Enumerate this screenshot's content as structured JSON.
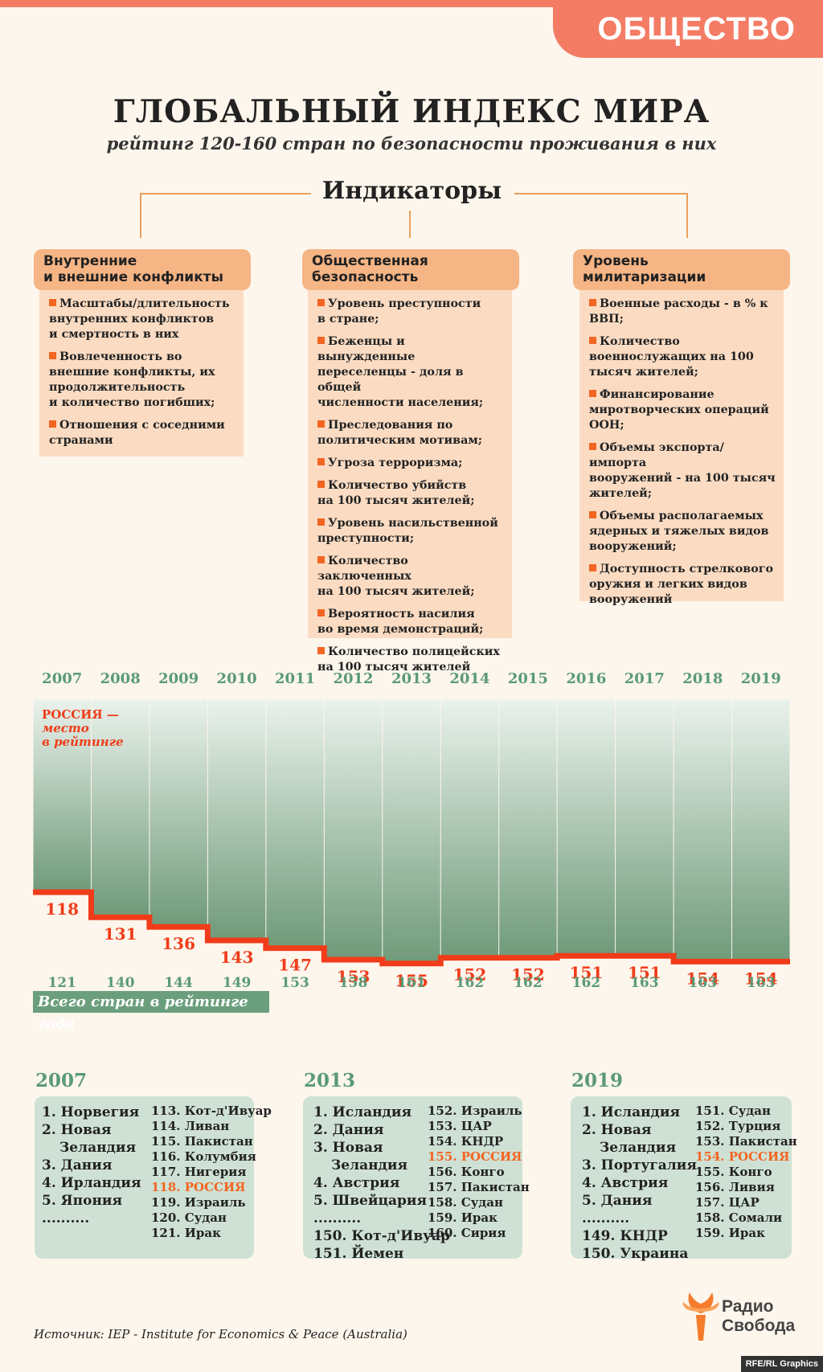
{
  "section": "ОБЩЕСТВО",
  "title": "ГЛОБАЛЬНЫЙ ИНДЕКС МИРА",
  "subtitle": "рейтинг 120-160 стран по безопасности проживания в них",
  "indicators_title": "Индикаторы",
  "categories": [
    {
      "title_lines": [
        "Внутренние",
        "и внешние конфликты"
      ],
      "items": [
        [
          "Масштабы/длительность",
          "внутренних конфликтов",
          "и смертность в них"
        ],
        [
          "Вовлеченность во",
          "внешние конфликты, их",
          "продолжительность",
          "и количество погибших;"
        ],
        [
          "Отношения с соседними",
          "странами"
        ]
      ]
    },
    {
      "title_lines": [
        "Общественная",
        "безопасность"
      ],
      "items": [
        [
          "Уровень преступности",
          "в стране;"
        ],
        [
          "Беженцы и вынужденные",
          "переселенцы - доля в общей",
          "численности населения;"
        ],
        [
          "Преследования по",
          "политическим мотивам;"
        ],
        [
          "Угроза терроризма;"
        ],
        [
          "Количество убийств",
          "на 100 тысяч жителей;"
        ],
        [
          "Уровень насильственной",
          "преступности;"
        ],
        [
          "Количество заключенных",
          "на 100 тысяч жителей;"
        ],
        [
          "Вероятность насилия",
          "во время демонстраций;"
        ],
        [
          "Количество полицейских",
          "на 100 тысяч жителей"
        ]
      ]
    },
    {
      "title_lines": [
        "Уровень",
        "милитаризации"
      ],
      "items": [
        [
          "Военные расходы - в % к",
          "ВВП;"
        ],
        [
          "Количество",
          "военнослужащих на 100",
          "тысяч жителей;"
        ],
        [
          "Финансирование",
          "миротворческих операций",
          "ООН;"
        ],
        [
          "Объемы экспорта/импорта",
          "вооружений - на 100 тысяч",
          "жителей;"
        ],
        [
          "Объемы располагаемых",
          "ядерных и тяжелых видов",
          "вооружений;"
        ],
        [
          "Доступность стрелкового",
          "оружия и легких видов",
          "вооружений"
        ]
      ]
    }
  ],
  "chart_data": {
    "type": "line",
    "x": [
      "2007",
      "2008",
      "2009",
      "2010",
      "2011",
      "2012",
      "2013",
      "2014",
      "2015",
      "2016",
      "2017",
      "2018",
      "2019"
    ],
    "series": [
      {
        "name": "РОССИЯ",
        "values": [
          118,
          131,
          136,
          143,
          147,
          153,
          155,
          152,
          152,
          151,
          151,
          154,
          154
        ]
      }
    ],
    "totals": [
      121,
      140,
      144,
      149,
      153,
      158,
      161,
      162,
      162,
      162,
      163,
      163,
      163
    ],
    "series_label_lines": [
      "РОССИЯ —",
      "место",
      "в рейтинге"
    ],
    "totals_label": "Всего стран в рейтинге года",
    "y_inverted": true,
    "colors": {
      "line": "#f03c1a",
      "fill_top": "#eaf2ec",
      "fill_bottom": "#6f9a79",
      "years": "#5a9a77",
      "totals": "#5a9a77"
    }
  },
  "rankings": [
    {
      "year": "2007",
      "top": [
        "1. Норвегия",
        "2. Новая",
        "Зеландия",
        "3. Дания",
        "4. Ирландия",
        "5. Япония",
        ".........."
      ],
      "bottom": [
        "113. Кот-д'Ивуар",
        "114. Ливан",
        "115. Пакистан",
        "116. Колумбия",
        "117. Нигерия",
        "118. РОССИЯ",
        "119. Израиль",
        "120. Судан",
        "121. Ирак"
      ],
      "highlight": "118. РОССИЯ"
    },
    {
      "year": "2013",
      "top": [
        "1. Исландия",
        "2. Дания",
        "3. Новая",
        "Зеландия",
        "4. Австрия",
        "5. Швейцария",
        "..........",
        "150. Кот-д'Ивуар",
        "151. Йемен"
      ],
      "bottom": [
        "152. Израиль",
        "153. ЦАР",
        "154. КНДР",
        "155. РОССИЯ",
        "156. Конго",
        "157. Пакистан",
        "158. Судан",
        "159. Ирак",
        "160. Сирия"
      ],
      "highlight": "155. РОССИЯ"
    },
    {
      "year": "2019",
      "top": [
        "1. Исландия",
        "2. Новая",
        "Зеландия",
        "3. Португалия",
        "4. Австрия",
        "5. Дания",
        "..........",
        "149. КНДР",
        "150. Украина"
      ],
      "bottom": [
        "151. Судан",
        "152. Турция",
        "153. Пакистан",
        "154. РОССИЯ",
        "155. Конго",
        "156. Ливия",
        "157. ЦАР",
        "158. Сомали",
        "159. Ирак"
      ],
      "highlight": "154. РОССИЯ"
    }
  ],
  "logo": {
    "line1": "Радио",
    "line2": "Свобода"
  },
  "source": "Источник: IEP - Institute for Economics & Peace (Australia)",
  "credit": "RFE/RL Graphics"
}
